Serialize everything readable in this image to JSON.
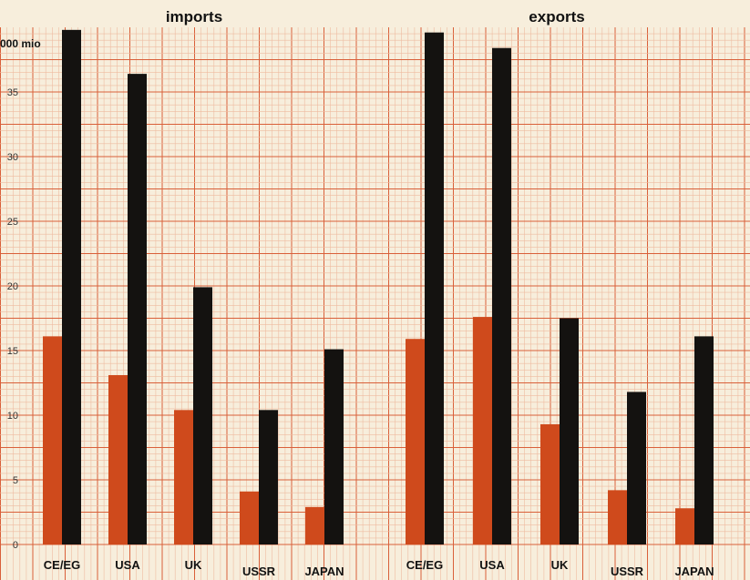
{
  "chart_data": [
    {
      "type": "bar",
      "title": "imports",
      "ylabel": "000 mio",
      "ylim": [
        0,
        40
      ],
      "yticks": [
        0,
        5,
        10,
        15,
        20,
        25,
        30,
        35
      ],
      "grid": true,
      "categories": [
        "CE/EG",
        "USA",
        "UK",
        "USSR",
        "JAPAN"
      ],
      "series": [
        {
          "values": [
            16.1,
            13.1,
            10.4,
            4.1,
            2.9
          ]
        },
        {
          "values": [
            39.8,
            36.4,
            19.9,
            10.4,
            15.1
          ]
        }
      ]
    },
    {
      "type": "bar",
      "title": "exports",
      "ylim": [
        0,
        40
      ],
      "grid": true,
      "categories": [
        "CE/EG",
        "USA",
        "UK",
        "USSR",
        "JAPAN"
      ],
      "series": [
        {
          "values": [
            15.9,
            17.6,
            9.3,
            4.2,
            2.8
          ]
        },
        {
          "values": [
            39.6,
            38.4,
            17.5,
            11.8,
            16.1
          ]
        }
      ]
    }
  ],
  "colors": {
    "series_1": "#cf4a1c",
    "series_2": "#141210",
    "grid_minor": "#eebba0",
    "grid_major": "#d9603a",
    "background": "#f7eedc"
  }
}
